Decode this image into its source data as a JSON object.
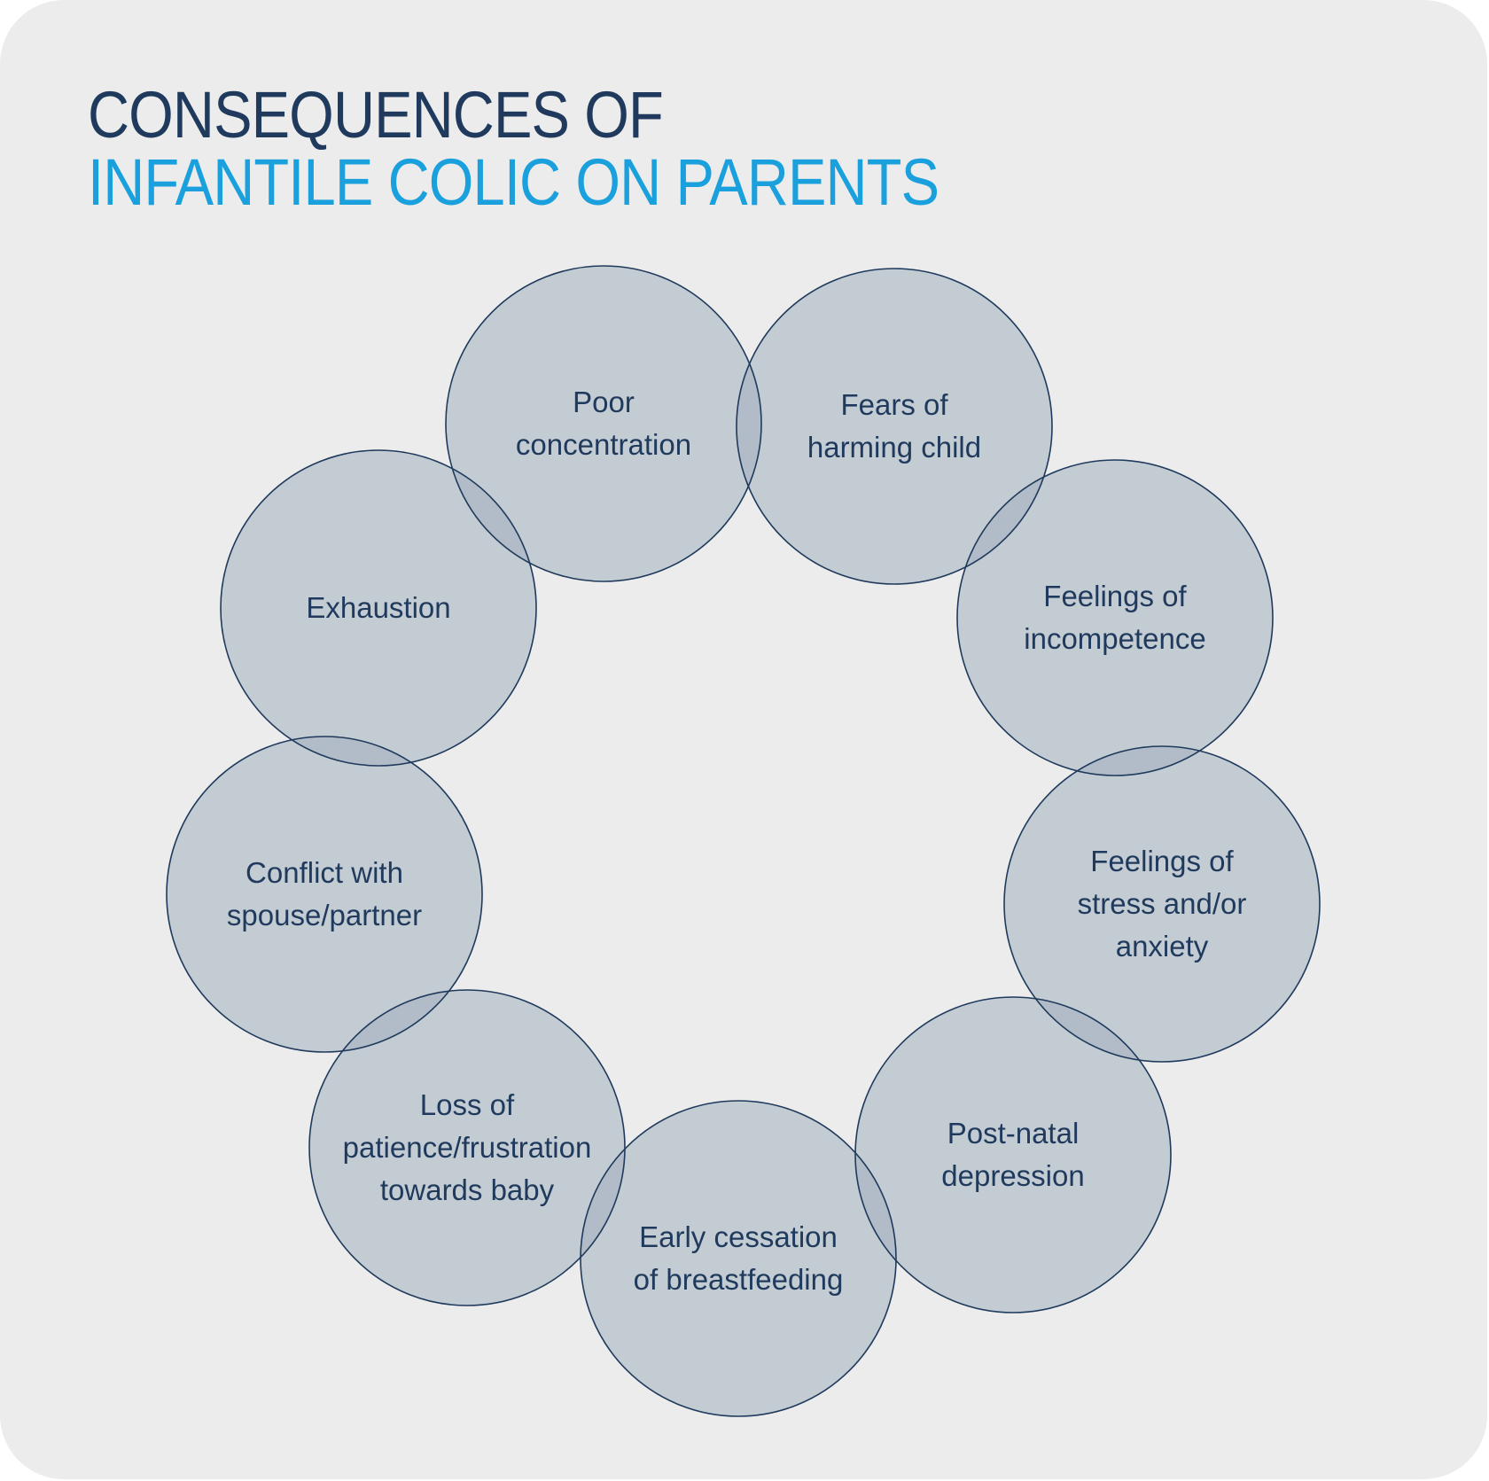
{
  "title": {
    "line1": "CONSEQUENCES OF",
    "line2": "INFANTILE COLIC ON PARENTS"
  },
  "colors": {
    "background": "#ececec",
    "title_dark": "#1f3a5c",
    "title_accent": "#1aa0dc",
    "circle_fill": "#a3b1c0",
    "circle_stroke": "#1f3a5c"
  },
  "circles": [
    {
      "id": "poor-concentration",
      "lines": [
        "Poor",
        "concentration"
      ]
    },
    {
      "id": "fears-of-harming-child",
      "lines": [
        "Fears of",
        "harming child"
      ]
    },
    {
      "id": "feelings-of-incompetence",
      "lines": [
        "Feelings of",
        "incompetence"
      ]
    },
    {
      "id": "feelings-of-stress",
      "lines": [
        "Feelings of",
        "stress and/or",
        "anxiety"
      ]
    },
    {
      "id": "post-natal-depression",
      "lines": [
        "Post-natal",
        "depression"
      ]
    },
    {
      "id": "early-cessation",
      "lines": [
        "Early cessation",
        "of breastfeeding"
      ]
    },
    {
      "id": "loss-of-patience",
      "lines": [
        "Loss of",
        "patience/frustration",
        "towards baby"
      ]
    },
    {
      "id": "conflict-with-spouse",
      "lines": [
        "Conflict with",
        "spouse/partner"
      ]
    },
    {
      "id": "exhaustion",
      "lines": [
        "Exhaustion"
      ]
    }
  ]
}
